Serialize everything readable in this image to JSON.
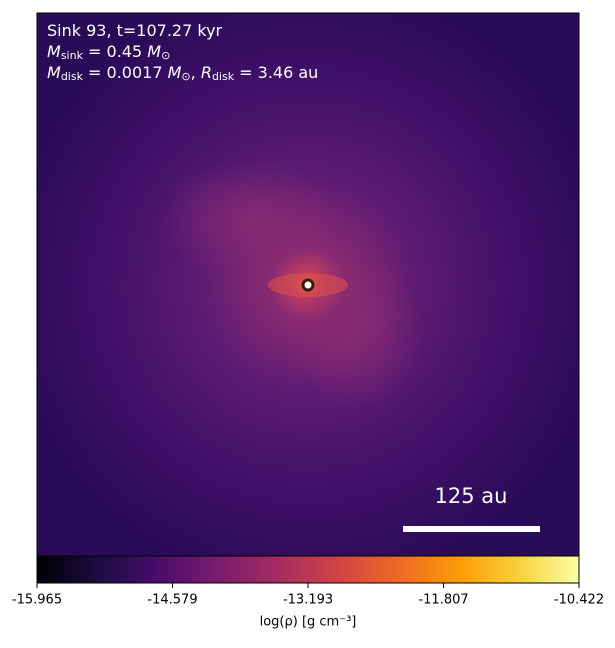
{
  "chart_data": {
    "type": "heatmap",
    "annotations": [
      [
        {
          "t": "Sink 93, t=107.27 kyr",
          "s": "normal"
        }
      ],
      [
        {
          "t": "M",
          "s": "italic"
        },
        {
          "t": "sink",
          "s": "sub"
        },
        {
          "t": " = 0.45 ",
          "s": "normal"
        },
        {
          "t": "M",
          "s": "italic"
        },
        {
          "t": "⊙",
          "s": "sub"
        }
      ],
      [
        {
          "t": "M",
          "s": "italic"
        },
        {
          "t": "disk",
          "s": "sub"
        },
        {
          "t": " = 0.0017 ",
          "s": "normal"
        },
        {
          "t": "M",
          "s": "italic"
        },
        {
          "t": "⊙",
          "s": "sub"
        },
        {
          "t": ", ",
          "s": "normal"
        },
        {
          "t": "R",
          "s": "italic"
        },
        {
          "t": "disk",
          "s": "sub"
        },
        {
          "t": " = 3.46 au",
          "s": "normal"
        }
      ]
    ],
    "scale_bar_label": "125 au",
    "colorbar_label": "log(ρ) [g cm⁻³]",
    "colormap": "inferno",
    "clim": [
      -15.965,
      -10.422
    ],
    "cticks": [
      -15.965,
      -14.579,
      -13.193,
      -11.807,
      -10.422
    ]
  }
}
